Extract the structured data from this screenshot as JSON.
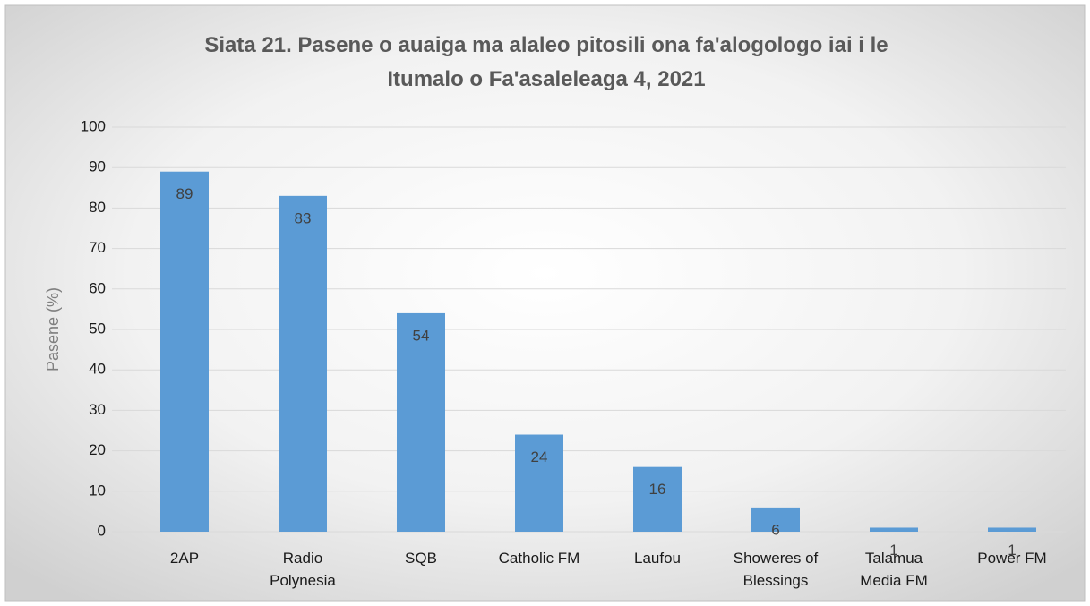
{
  "chart_data": {
    "type": "bar",
    "title": "Siata 21. Pasene o auaiga ma alaleo pitosili ona fa'alogologo iai i le Itumalo o Fa'asaleleaga 4, 2021",
    "y_label": "Pasene (%)",
    "categories": [
      "2AP",
      "Radio Polynesia",
      "SQB",
      "Catholic FM",
      "Laufou",
      "Showeres of Blessings",
      "Talamua Media FM",
      "Power FM"
    ],
    "values": [
      89,
      83,
      54,
      24,
      16,
      6,
      1,
      1
    ],
    "color": "#5b9bd5",
    "ylim": [
      0,
      100
    ],
    "yticks": [
      0,
      10,
      20,
      30,
      40,
      50,
      60,
      70,
      80,
      90,
      100
    ],
    "grid": true
  }
}
